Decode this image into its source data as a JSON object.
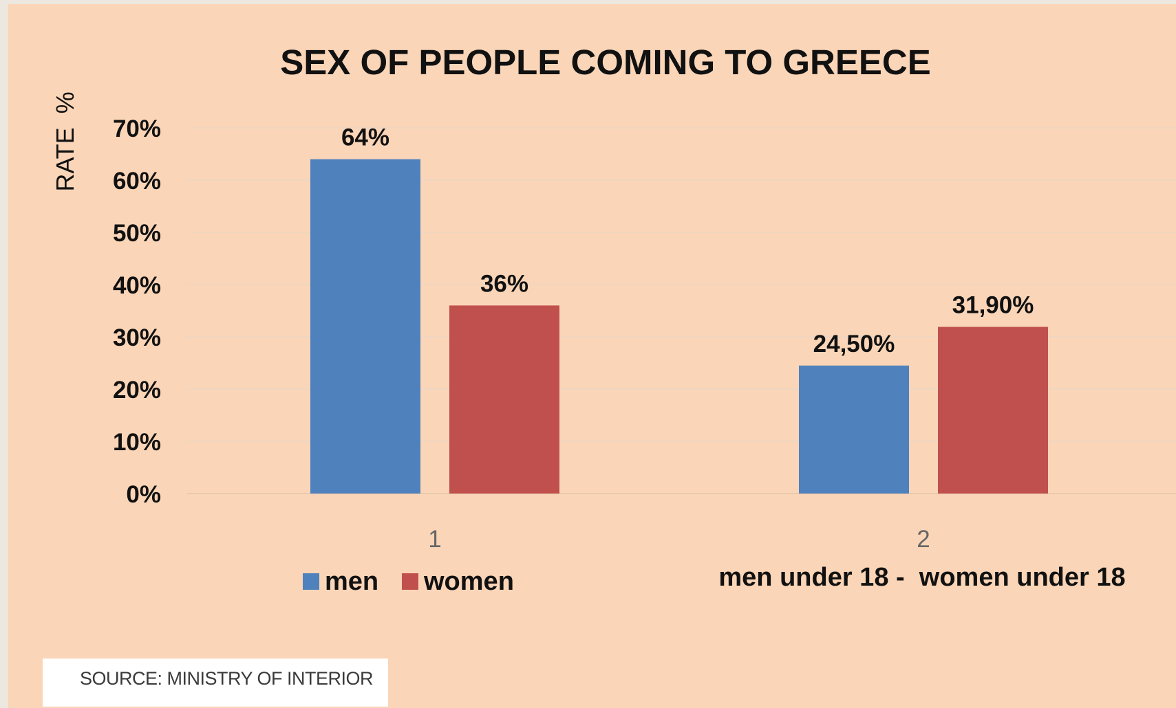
{
  "chart_data": {
    "type": "bar",
    "title": "SEX OF PEOPLE COMING TO GREECE",
    "ylabel": "RATE  %",
    "xlabel": "",
    "categories": [
      "1",
      "2"
    ],
    "series": [
      {
        "name": "men",
        "values": [
          64,
          24.5
        ],
        "labels": [
          "64%",
          "24,50%"
        ],
        "color": "#4f81bd"
      },
      {
        "name": "women",
        "values": [
          36,
          31.9
        ],
        "labels": [
          "36%",
          "31,90%"
        ],
        "color": "#c0504d"
      }
    ],
    "ylim": [
      0,
      70
    ],
    "yticks": [
      0,
      10,
      20,
      30,
      40,
      50,
      60,
      70
    ],
    "ytick_labels": [
      "0%",
      "10%",
      "20%",
      "30%",
      "40%",
      "50%",
      "60%",
      "70%"
    ],
    "grid": true,
    "legend_position": "bottom",
    "annotation": "men under 18 -  women under 18"
  },
  "source": "SOURCE: MINISTRY OF INTERIOR"
}
